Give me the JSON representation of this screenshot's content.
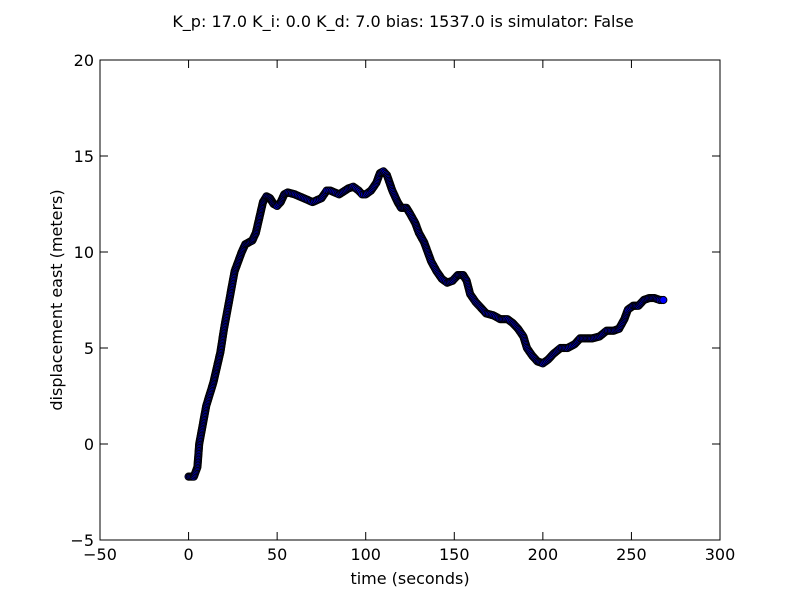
{
  "chart_data": {
    "type": "scatter",
    "title": "K_p: 17.0 K_i: 0.0 K_d: 7.0 bias: 1537.0 is simulator: False",
    "xlabel": "time (seconds)",
    "ylabel": "displacement east (meters)",
    "xlim": [
      -50,
      300
    ],
    "ylim": [
      -5,
      20
    ],
    "xticks": [
      -50,
      0,
      50,
      100,
      150,
      200,
      250,
      300
    ],
    "yticks": [
      -5,
      0,
      5,
      10,
      15,
      20
    ],
    "grid": false,
    "marker_face_color": "#0000ff",
    "marker_edge_color": "#000000",
    "points": [
      [
        0,
        -1.7
      ],
      [
        3,
        -1.7
      ],
      [
        5,
        -1.2
      ],
      [
        6,
        0.0
      ],
      [
        8,
        1.0
      ],
      [
        10,
        2.0
      ],
      [
        12,
        2.6
      ],
      [
        14,
        3.2
      ],
      [
        16,
        4.0
      ],
      [
        18,
        4.8
      ],
      [
        20,
        6.0
      ],
      [
        22,
        7.0
      ],
      [
        24,
        8.0
      ],
      [
        26,
        9.0
      ],
      [
        28,
        9.5
      ],
      [
        30,
        10.0
      ],
      [
        32,
        10.4
      ],
      [
        34,
        10.5
      ],
      [
        36,
        10.6
      ],
      [
        38,
        11.0
      ],
      [
        40,
        11.8
      ],
      [
        42,
        12.6
      ],
      [
        44,
        12.9
      ],
      [
        46,
        12.8
      ],
      [
        48,
        12.5
      ],
      [
        50,
        12.4
      ],
      [
        52,
        12.6
      ],
      [
        54,
        13.0
      ],
      [
        56,
        13.1
      ],
      [
        60,
        13.0
      ],
      [
        65,
        12.8
      ],
      [
        70,
        12.6
      ],
      [
        75,
        12.8
      ],
      [
        78,
        13.2
      ],
      [
        80,
        13.2
      ],
      [
        85,
        13.0
      ],
      [
        90,
        13.3
      ],
      [
        93,
        13.4
      ],
      [
        96,
        13.2
      ],
      [
        98,
        13.0
      ],
      [
        100,
        13.0
      ],
      [
        103,
        13.2
      ],
      [
        106,
        13.6
      ],
      [
        108,
        14.1
      ],
      [
        110,
        14.2
      ],
      [
        112,
        14.0
      ],
      [
        115,
        13.2
      ],
      [
        118,
        12.6
      ],
      [
        120,
        12.3
      ],
      [
        123,
        12.3
      ],
      [
        125,
        12.0
      ],
      [
        128,
        11.5
      ],
      [
        130,
        11.0
      ],
      [
        133,
        10.5
      ],
      [
        135,
        10.0
      ],
      [
        137,
        9.5
      ],
      [
        140,
        9.0
      ],
      [
        143,
        8.6
      ],
      [
        146,
        8.4
      ],
      [
        149,
        8.5
      ],
      [
        152,
        8.8
      ],
      [
        155,
        8.8
      ],
      [
        157,
        8.5
      ],
      [
        159,
        7.8
      ],
      [
        162,
        7.4
      ],
      [
        165,
        7.1
      ],
      [
        168,
        6.8
      ],
      [
        172,
        6.7
      ],
      [
        176,
        6.5
      ],
      [
        180,
        6.5
      ],
      [
        183,
        6.3
      ],
      [
        186,
        6.0
      ],
      [
        189,
        5.6
      ],
      [
        191,
        5.0
      ],
      [
        194,
        4.6
      ],
      [
        197,
        4.3
      ],
      [
        200,
        4.2
      ],
      [
        203,
        4.4
      ],
      [
        206,
        4.7
      ],
      [
        210,
        5.0
      ],
      [
        214,
        5.0
      ],
      [
        218,
        5.2
      ],
      [
        221,
        5.5
      ],
      [
        225,
        5.5
      ],
      [
        228,
        5.5
      ],
      [
        232,
        5.6
      ],
      [
        236,
        5.9
      ],
      [
        240,
        5.9
      ],
      [
        243,
        6.0
      ],
      [
        246,
        6.5
      ],
      [
        248,
        7.0
      ],
      [
        251,
        7.2
      ],
      [
        254,
        7.2
      ],
      [
        257,
        7.5
      ],
      [
        260,
        7.6
      ],
      [
        263,
        7.6
      ],
      [
        266,
        7.5
      ],
      [
        268,
        7.5
      ]
    ]
  }
}
